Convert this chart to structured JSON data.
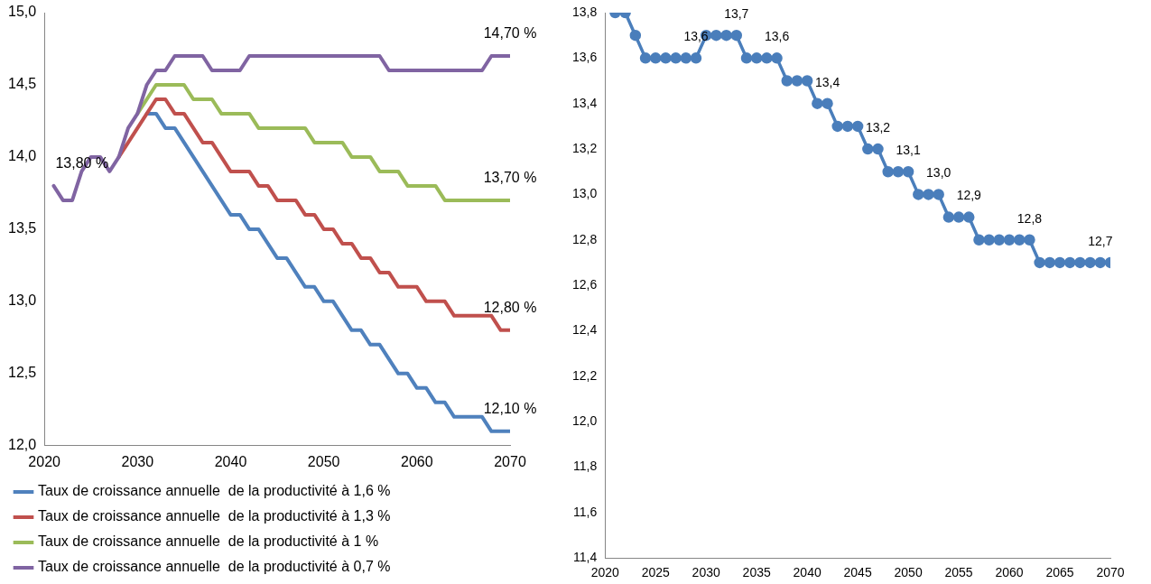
{
  "chart_data": [
    {
      "type": "line",
      "x": [
        2021,
        2022,
        2023,
        2024,
        2025,
        2026,
        2027,
        2028,
        2029,
        2030,
        2031,
        2032,
        2033,
        2034,
        2035,
        2036,
        2037,
        2038,
        2039,
        2040,
        2041,
        2042,
        2043,
        2044,
        2045,
        2046,
        2047,
        2048,
        2049,
        2050,
        2051,
        2052,
        2053,
        2054,
        2055,
        2056,
        2057,
        2058,
        2059,
        2060,
        2061,
        2062,
        2063,
        2064,
        2065,
        2066,
        2067,
        2068,
        2069,
        2070
      ],
      "xlim": [
        2020,
        2070
      ],
      "xticks": [
        2020,
        2030,
        2040,
        2050,
        2060,
        2070
      ],
      "ylim": [
        12,
        15
      ],
      "yticks": [
        {
          "value": 12,
          "label": "12,0"
        },
        {
          "value": 12.5,
          "label": "12,5"
        },
        {
          "value": 13,
          "label": "13,0"
        },
        {
          "value": 13.5,
          "label": "13,5"
        },
        {
          "value": 14,
          "label": "14,0"
        },
        {
          "value": 14.5,
          "label": "14,5"
        },
        {
          "value": 15,
          "label": "15,0"
        }
      ],
      "legend": "bottom",
      "marker": "none",
      "series": [
        {
          "name": "Taux de croissance annuelle  de la productivité à 1,6 %",
          "color": "#4f81bd",
          "values": [
            null,
            null,
            null,
            null,
            null,
            null,
            null,
            null,
            null,
            null,
            14.3,
            14.3,
            14.2,
            14.2,
            14.1,
            14.0,
            13.9,
            13.8,
            13.7,
            13.6,
            13.6,
            13.5,
            13.5,
            13.4,
            13.3,
            13.3,
            13.2,
            13.1,
            13.1,
            13.0,
            13.0,
            12.9,
            12.8,
            12.8,
            12.7,
            12.7,
            12.6,
            12.5,
            12.5,
            12.4,
            12.4,
            12.3,
            12.3,
            12.2,
            12.2,
            12.2,
            12.2,
            12.1,
            12.1,
            12.1
          ],
          "value_labels": [
            null,
            null,
            null,
            null,
            null,
            null,
            null,
            null,
            null,
            null,
            null,
            null,
            null,
            null,
            null,
            null,
            null,
            null,
            null,
            null,
            null,
            null,
            null,
            null,
            null,
            null,
            null,
            null,
            null,
            null,
            null,
            null,
            null,
            null,
            null,
            null,
            null,
            null,
            null,
            null,
            null,
            null,
            null,
            null,
            null,
            null,
            null,
            null,
            null,
            "12,10 %"
          ]
        },
        {
          "name": "Taux de croissance annuelle  de la productivité à 1,3 %",
          "color": "#c0504d",
          "values": [
            null,
            null,
            null,
            null,
            null,
            null,
            null,
            14.0,
            14.1,
            14.2,
            14.3,
            14.4,
            14.4,
            14.3,
            14.3,
            14.2,
            14.1,
            14.1,
            14.0,
            13.9,
            13.9,
            13.9,
            13.8,
            13.8,
            13.7,
            13.7,
            13.7,
            13.6,
            13.6,
            13.5,
            13.5,
            13.4,
            13.4,
            13.3,
            13.3,
            13.2,
            13.2,
            13.1,
            13.1,
            13.1,
            13.0,
            13.0,
            13.0,
            12.9,
            12.9,
            12.9,
            12.9,
            12.9,
            12.8,
            12.8
          ],
          "value_labels": [
            null,
            null,
            null,
            null,
            null,
            null,
            null,
            null,
            null,
            null,
            null,
            null,
            null,
            null,
            null,
            null,
            null,
            null,
            null,
            null,
            null,
            null,
            null,
            null,
            null,
            null,
            null,
            null,
            null,
            null,
            null,
            null,
            null,
            null,
            null,
            null,
            null,
            null,
            null,
            null,
            null,
            null,
            null,
            null,
            null,
            null,
            null,
            null,
            null,
            "12,80 %"
          ]
        },
        {
          "name": "Taux de croissance annuelle  de la productivité à 1 %",
          "color": "#9bbb59",
          "values": [
            null,
            null,
            null,
            null,
            null,
            null,
            null,
            null,
            null,
            14.3,
            14.4,
            14.5,
            14.5,
            14.5,
            14.5,
            14.4,
            14.4,
            14.4,
            14.3,
            14.3,
            14.3,
            14.3,
            14.2,
            14.2,
            14.2,
            14.2,
            14.2,
            14.2,
            14.1,
            14.1,
            14.1,
            14.1,
            14.0,
            14.0,
            14.0,
            13.9,
            13.9,
            13.9,
            13.8,
            13.8,
            13.8,
            13.8,
            13.7,
            13.7,
            13.7,
            13.7,
            13.7,
            13.7,
            13.7,
            13.7
          ],
          "value_labels": [
            null,
            null,
            null,
            null,
            null,
            null,
            null,
            null,
            null,
            null,
            null,
            null,
            null,
            null,
            null,
            null,
            null,
            null,
            null,
            null,
            null,
            null,
            null,
            null,
            null,
            null,
            null,
            null,
            null,
            null,
            null,
            null,
            null,
            null,
            null,
            null,
            null,
            null,
            null,
            null,
            null,
            null,
            null,
            null,
            null,
            null,
            null,
            null,
            null,
            "13,70 %"
          ]
        },
        {
          "name": "Taux de croissance annuelle  de la productivité à 0,7 %",
          "color": "#8064a2",
          "values": [
            13.8,
            13.7,
            13.7,
            13.9,
            14.0,
            14.0,
            13.9,
            14.0,
            14.2,
            14.3,
            14.5,
            14.6,
            14.6,
            14.7,
            14.7,
            14.7,
            14.7,
            14.6,
            14.6,
            14.6,
            14.6,
            14.7,
            14.7,
            14.7,
            14.7,
            14.7,
            14.7,
            14.7,
            14.7,
            14.7,
            14.7,
            14.7,
            14.7,
            14.7,
            14.7,
            14.7,
            14.6,
            14.6,
            14.6,
            14.6,
            14.6,
            14.6,
            14.6,
            14.6,
            14.6,
            14.6,
            14.6,
            14.7,
            14.7,
            14.7
          ],
          "value_labels": [
            "13,80 %",
            null,
            null,
            null,
            null,
            null,
            null,
            null,
            null,
            null,
            null,
            null,
            null,
            null,
            null,
            null,
            null,
            null,
            null,
            null,
            null,
            null,
            null,
            null,
            null,
            null,
            null,
            null,
            null,
            null,
            null,
            null,
            null,
            null,
            null,
            null,
            null,
            null,
            null,
            null,
            null,
            null,
            null,
            null,
            null,
            null,
            null,
            null,
            null,
            "14,70 %"
          ]
        }
      ]
    },
    {
      "type": "line",
      "x": [
        2021,
        2022,
        2023,
        2024,
        2025,
        2026,
        2027,
        2028,
        2029,
        2030,
        2031,
        2032,
        2033,
        2034,
        2035,
        2036,
        2037,
        2038,
        2039,
        2040,
        2041,
        2042,
        2043,
        2044,
        2045,
        2046,
        2047,
        2048,
        2049,
        2050,
        2051,
        2052,
        2053,
        2054,
        2055,
        2056,
        2057,
        2058,
        2059,
        2060,
        2061,
        2062,
        2063,
        2064,
        2065,
        2066,
        2067,
        2068,
        2069,
        2070
      ],
      "xlim": [
        2020,
        2070
      ],
      "xticks": [
        2020,
        2025,
        2030,
        2035,
        2040,
        2045,
        2050,
        2055,
        2060,
        2065,
        2070
      ],
      "ylim": [
        11.4,
        13.8
      ],
      "yticks": [
        {
          "value": 11.4,
          "label": "11,4"
        },
        {
          "value": 11.6,
          "label": "11,6"
        },
        {
          "value": 11.8,
          "label": "11,8"
        },
        {
          "value": 12,
          "label": "12,0"
        },
        {
          "value": 12.2,
          "label": "12,2"
        },
        {
          "value": 12.4,
          "label": "12,4"
        },
        {
          "value": 12.6,
          "label": "12,6"
        },
        {
          "value": 12.8,
          "label": "12,8"
        },
        {
          "value": 13,
          "label": "13,0"
        },
        {
          "value": 13.2,
          "label": "13,2"
        },
        {
          "value": 13.4,
          "label": "13,4"
        },
        {
          "value": 13.6,
          "label": "13,6"
        },
        {
          "value": 13.8,
          "label": "13,8"
        }
      ],
      "marker": "circle",
      "series": [
        {
          "color": "#4a7ebb",
          "values": [
            13.8,
            13.8,
            13.7,
            13.6,
            13.6,
            13.6,
            13.6,
            13.6,
            13.6,
            13.7,
            13.7,
            13.7,
            13.7,
            13.6,
            13.6,
            13.6,
            13.6,
            13.5,
            13.5,
            13.5,
            13.4,
            13.4,
            13.3,
            13.3,
            13.3,
            13.2,
            13.2,
            13.1,
            13.1,
            13.1,
            13.0,
            13.0,
            13.0,
            12.9,
            12.9,
            12.9,
            12.8,
            12.8,
            12.8,
            12.8,
            12.8,
            12.8,
            12.7,
            12.7,
            12.7,
            12.7,
            12.7,
            12.7,
            12.7,
            12.7
          ],
          "value_labels": [
            null,
            null,
            null,
            null,
            null,
            null,
            null,
            null,
            "13,6",
            null,
            null,
            null,
            "13,7",
            null,
            null,
            null,
            "13,6",
            null,
            null,
            null,
            null,
            "13,4",
            null,
            null,
            null,
            null,
            "13,2",
            null,
            null,
            "13,1",
            null,
            null,
            "13,0",
            null,
            null,
            "12,9",
            null,
            null,
            null,
            null,
            null,
            "12,8",
            null,
            null,
            null,
            null,
            null,
            null,
            "12,7",
            null
          ]
        }
      ]
    }
  ]
}
